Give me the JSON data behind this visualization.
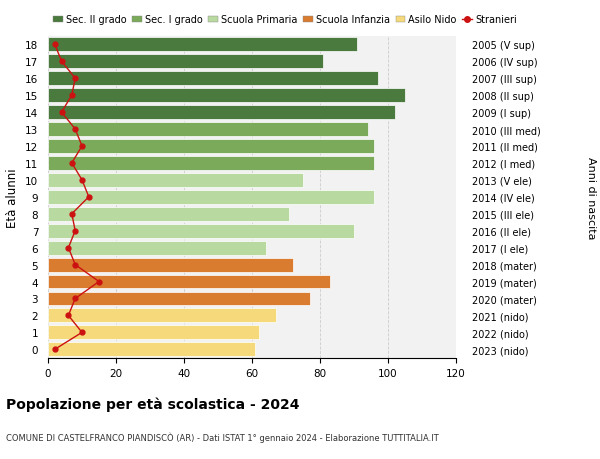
{
  "ages": [
    18,
    17,
    16,
    15,
    14,
    13,
    12,
    11,
    10,
    9,
    8,
    7,
    6,
    5,
    4,
    3,
    2,
    1,
    0
  ],
  "labels_right": [
    "2005 (V sup)",
    "2006 (IV sup)",
    "2007 (III sup)",
    "2008 (II sup)",
    "2009 (I sup)",
    "2010 (III med)",
    "2011 (II med)",
    "2012 (I med)",
    "2013 (V ele)",
    "2014 (IV ele)",
    "2015 (III ele)",
    "2016 (II ele)",
    "2017 (I ele)",
    "2018 (mater)",
    "2019 (mater)",
    "2020 (mater)",
    "2021 (nido)",
    "2022 (nido)",
    "2023 (nido)"
  ],
  "bar_values": [
    91,
    81,
    97,
    105,
    102,
    94,
    96,
    96,
    75,
    96,
    71,
    90,
    64,
    72,
    83,
    77,
    67,
    62,
    61
  ],
  "bar_colors": [
    "#4a7a3d",
    "#4a7a3d",
    "#4a7a3d",
    "#4a7a3d",
    "#4a7a3d",
    "#7aaa5a",
    "#7aaa5a",
    "#7aaa5a",
    "#b8d9a0",
    "#b8d9a0",
    "#b8d9a0",
    "#b8d9a0",
    "#b8d9a0",
    "#d97c30",
    "#d97c30",
    "#d97c30",
    "#f5d97a",
    "#f5d97a",
    "#f5d97a"
  ],
  "stranieri_values": [
    2,
    4,
    8,
    7,
    4,
    8,
    10,
    7,
    10,
    12,
    7,
    8,
    6,
    8,
    15,
    8,
    6,
    10,
    2
  ],
  "legend_labels": [
    "Sec. II grado",
    "Sec. I grado",
    "Scuola Primaria",
    "Scuola Infanzia",
    "Asilo Nido",
    "Stranieri"
  ],
  "legend_colors": [
    "#4a7a3d",
    "#7aaa5a",
    "#b8d9a0",
    "#d97c30",
    "#f5d97a",
    "#cc1111"
  ],
  "title": "Popolazione per età scolastica - 2024",
  "subtitle": "COMUNE DI CASTELFRANCO PIANDISCÒ (AR) - Dati ISTAT 1° gennaio 2024 - Elaborazione TUTTITALIA.IT",
  "ylabel_left": "Età alunni",
  "ylabel_right": "Anni di nascita",
  "xlim": [
    0,
    120
  ],
  "plot_bg": "#f2f2f2",
  "fig_bg": "#ffffff",
  "grid_color": "#cccccc"
}
